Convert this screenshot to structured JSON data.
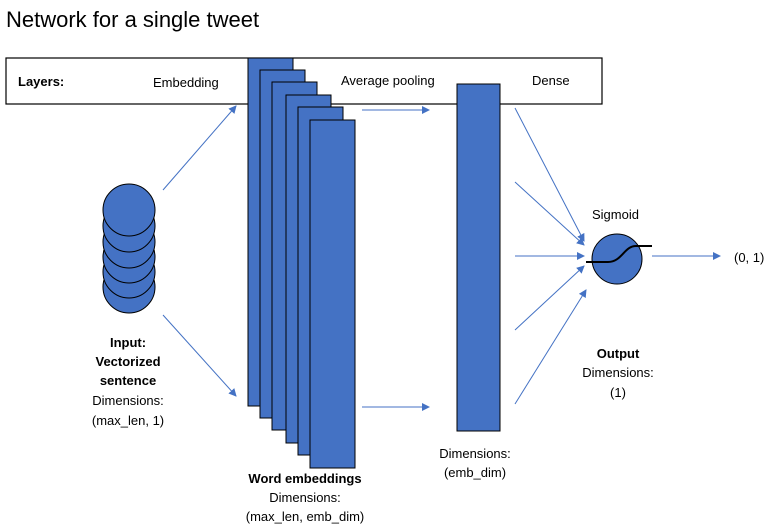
{
  "title": "Network for a single tweet",
  "layers_bar": {
    "heading": "Layers:",
    "embedding": "Embedding",
    "average_pooling": "Average pooling",
    "dense": "Dense"
  },
  "input": {
    "heading_line1": "Input:",
    "heading_line2": "Vectorized",
    "heading_line3": "sentence",
    "dims_label": "Dimensions:",
    "dims_value": "(max_len, 1)"
  },
  "word_embeddings": {
    "heading": "Word embeddings",
    "dims_label": "Dimensions:",
    "dims_value": "(max_len, emb_dim)"
  },
  "pooling": {
    "dims_label": "Dimensions:",
    "dims_value": "(emb_dim)"
  },
  "output": {
    "heading": "Output",
    "dims_label": "Dimensions:",
    "dims_value": "(1)",
    "activation": "Sigmoid",
    "range": "(0, 1)"
  },
  "colors": {
    "node_fill": "#4472C4",
    "node_stroke": "#000000",
    "arrow": "#4472C4"
  },
  "icons": {
    "sigmoid": "sigmoid-curve-icon"
  }
}
